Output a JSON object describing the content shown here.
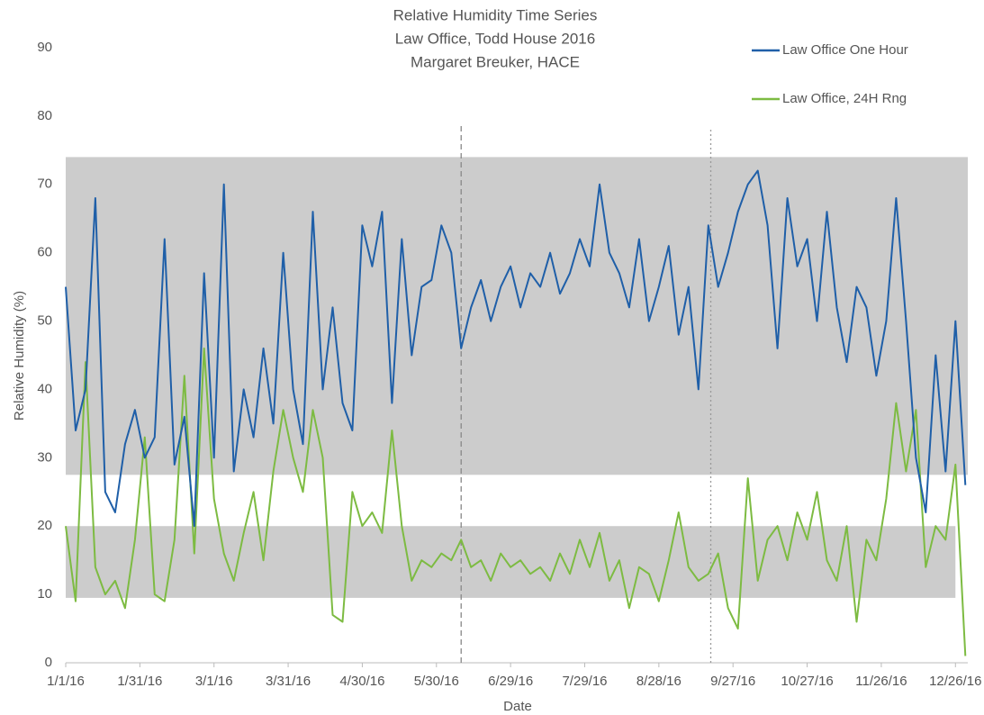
{
  "chart_data": {
    "type": "line",
    "title": [
      "Relative Humidity Time Series",
      "Law Office, Todd House 2016",
      "Margaret Breuker, HACE"
    ],
    "xlabel": "Date",
    "ylabel": "Relative Humidity (%)",
    "x": [
      "2016-01-01",
      "2016-01-05",
      "2016-01-09",
      "2016-01-13",
      "2016-01-17",
      "2016-01-21",
      "2016-01-25",
      "2016-01-29",
      "2016-02-02",
      "2016-02-06",
      "2016-02-10",
      "2016-02-14",
      "2016-02-18",
      "2016-02-22",
      "2016-02-26",
      "2016-03-01",
      "2016-03-05",
      "2016-03-09",
      "2016-03-13",
      "2016-03-17",
      "2016-03-21",
      "2016-03-25",
      "2016-03-29",
      "2016-04-02",
      "2016-04-06",
      "2016-04-10",
      "2016-04-14",
      "2016-04-18",
      "2016-04-22",
      "2016-04-26",
      "2016-04-30",
      "2016-05-04",
      "2016-05-08",
      "2016-05-12",
      "2016-05-16",
      "2016-05-20",
      "2016-05-24",
      "2016-05-28",
      "2016-06-01",
      "2016-06-05",
      "2016-06-09",
      "2016-06-13",
      "2016-06-17",
      "2016-06-21",
      "2016-06-25",
      "2016-06-29",
      "2016-07-03",
      "2016-07-07",
      "2016-07-11",
      "2016-07-15",
      "2016-07-19",
      "2016-07-23",
      "2016-07-27",
      "2016-07-31",
      "2016-08-04",
      "2016-08-08",
      "2016-08-12",
      "2016-08-16",
      "2016-08-20",
      "2016-08-24",
      "2016-08-28",
      "2016-09-01",
      "2016-09-05",
      "2016-09-09",
      "2016-09-13",
      "2016-09-17",
      "2016-09-21",
      "2016-09-25",
      "2016-09-29",
      "2016-10-03",
      "2016-10-07",
      "2016-10-11",
      "2016-10-15",
      "2016-10-19",
      "2016-10-23",
      "2016-10-27",
      "2016-10-31",
      "2016-11-04",
      "2016-11-08",
      "2016-11-12",
      "2016-11-16",
      "2016-11-20",
      "2016-11-24",
      "2016-11-28",
      "2016-12-02",
      "2016-12-06",
      "2016-12-10",
      "2016-12-14",
      "2016-12-18",
      "2016-12-22",
      "2016-12-26",
      "2016-12-30"
    ],
    "series": [
      {
        "name": "Law Office One Hour",
        "color": "#1f5fa8",
        "values": [
          55,
          34,
          40,
          68,
          25,
          22,
          32,
          37,
          30,
          33,
          62,
          29,
          36,
          20,
          57,
          30,
          70,
          28,
          40,
          33,
          46,
          35,
          60,
          40,
          32,
          66,
          40,
          52,
          38,
          34,
          64,
          58,
          66,
          38,
          62,
          45,
          55,
          56,
          64,
          60,
          46,
          52,
          56,
          50,
          55,
          58,
          52,
          57,
          55,
          60,
          54,
          57,
          62,
          58,
          70,
          60,
          57,
          52,
          62,
          50,
          55,
          61,
          48,
          55,
          40,
          64,
          55,
          60,
          66,
          70,
          72,
          64,
          46,
          68,
          58,
          62,
          50,
          66,
          52,
          44,
          55,
          52,
          42,
          50,
          68,
          50,
          30,
          22,
          45,
          28,
          50,
          26
        ]
      },
      {
        "name": "Law Office, 24H Rng",
        "color": "#7dbb42",
        "values": [
          20,
          9,
          44,
          14,
          10,
          12,
          8,
          18,
          33,
          10,
          9,
          18,
          42,
          16,
          46,
          24,
          16,
          12,
          19,
          25,
          15,
          28,
          37,
          30,
          25,
          37,
          30,
          7,
          6,
          25,
          20,
          22,
          19,
          34,
          20,
          12,
          15,
          14,
          16,
          15,
          18,
          14,
          15,
          12,
          16,
          14,
          15,
          13,
          14,
          12,
          16,
          13,
          18,
          14,
          19,
          12,
          15,
          8,
          14,
          13,
          9,
          15,
          22,
          14,
          12,
          13,
          16,
          8,
          5,
          27,
          12,
          18,
          20,
          15,
          22,
          18,
          25,
          15,
          12,
          20,
          6,
          18,
          15,
          24,
          38,
          28,
          37,
          14,
          20,
          18,
          29,
          1
        ]
      }
    ],
    "xlim": [
      "2016-01-01",
      "2016-12-31"
    ],
    "xticks": [
      {
        "value": "2016-01-01",
        "label": "1/1/16"
      },
      {
        "value": "2016-01-31",
        "label": "1/31/16"
      },
      {
        "value": "2016-03-01",
        "label": "3/1/16"
      },
      {
        "value": "2016-03-31",
        "label": "3/31/16"
      },
      {
        "value": "2016-04-30",
        "label": "4/30/16"
      },
      {
        "value": "2016-05-30",
        "label": "5/30/16"
      },
      {
        "value": "2016-06-29",
        "label": "6/29/16"
      },
      {
        "value": "2016-07-29",
        "label": "7/29/16"
      },
      {
        "value": "2016-08-28",
        "label": "8/28/16"
      },
      {
        "value": "2016-09-27",
        "label": "9/27/16"
      },
      {
        "value": "2016-10-27",
        "label": "10/27/16"
      },
      {
        "value": "2016-11-26",
        "label": "11/26/16"
      },
      {
        "value": "2016-12-26",
        "label": "12/26/16"
      }
    ],
    "ylim": [
      0,
      90
    ],
    "yticks": [
      0,
      10,
      20,
      30,
      40,
      50,
      60,
      70,
      80,
      90
    ],
    "bands": [
      {
        "ylim": [
          27.5,
          74
        ],
        "xlim": [
          "2016-01-01",
          "2016-12-31"
        ],
        "color": "#cccccc"
      },
      {
        "ylim": [
          9.5,
          20
        ],
        "xlim": [
          "2016-01-01",
          "2016-12-26"
        ],
        "color": "#cccccc"
      }
    ],
    "vlines": [
      {
        "x": "2016-06-09",
        "ylim": [
          0,
          79
        ],
        "color": "#888888",
        "dash": "6,4"
      },
      {
        "x": "2016-09-18",
        "ylim": [
          0,
          78
        ],
        "color": "#999999",
        "dash": "2,3"
      }
    ],
    "legend": "upper right",
    "grid": false
  }
}
